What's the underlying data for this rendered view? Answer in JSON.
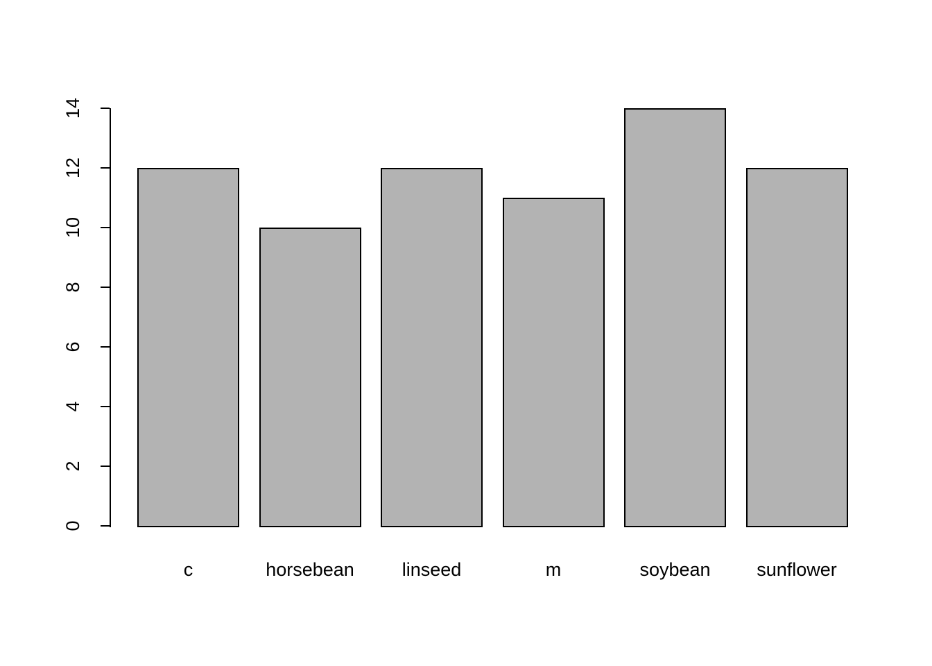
{
  "chart_data": {
    "type": "bar",
    "title": "",
    "xlabel": "",
    "ylabel": "",
    "categories": [
      "c",
      "horsebean",
      "linseed",
      "m",
      "soybean",
      "sunflower"
    ],
    "values": [
      12,
      10,
      12,
      11,
      14,
      12
    ],
    "ylim": [
      0,
      14
    ],
    "yticks": [
      0,
      2,
      4,
      6,
      8,
      10,
      12,
      14
    ],
    "grid": false,
    "legend": false,
    "y_tick_label_orientation": "rotated-90-ccw",
    "bar_fill_color": "#b3b3b3",
    "bar_border_color": "#000000",
    "axis_color": "#000000",
    "background_color": "#ffffff"
  }
}
